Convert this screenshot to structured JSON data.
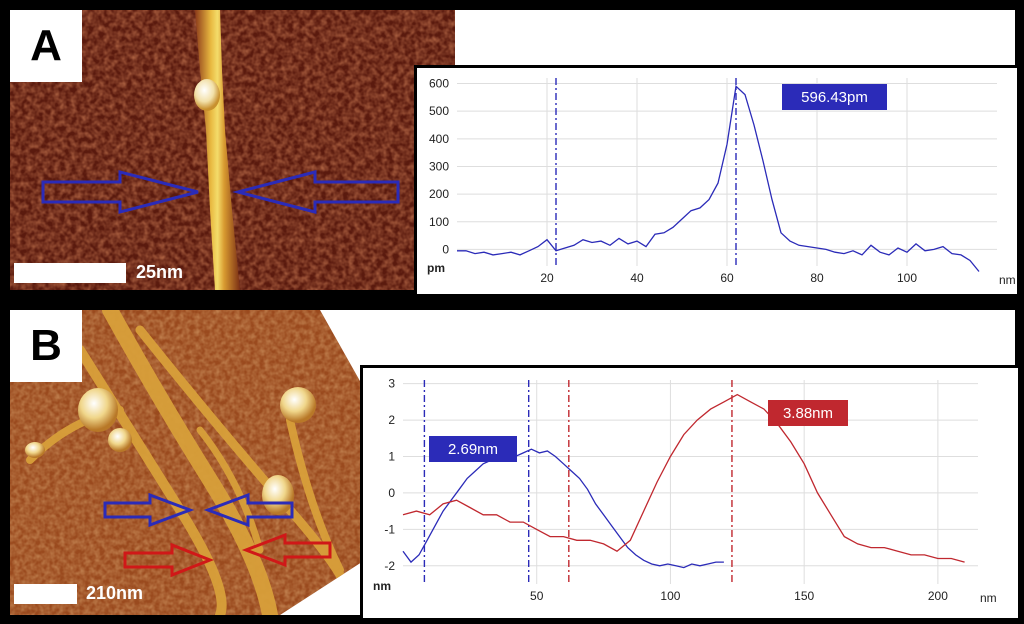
{
  "panels": {
    "A": {
      "label": "A",
      "scale_bar": "25nm"
    },
    "B": {
      "label": "B",
      "scale_bar": "210nm"
    }
  },
  "colors": {
    "blue": "#2b2bb8",
    "red": "#c0282f",
    "afm_dark": "#5a1a0e",
    "afm_mid": "#8b3a1a",
    "afm_bright": "#e8b840"
  },
  "chart_data": [
    {
      "type": "line",
      "panel": "A",
      "xlabel": "nm",
      "ylabel": "pm",
      "xlim": [
        0,
        120
      ],
      "ylim": [
        -60,
        620
      ],
      "xticks": [
        20,
        40,
        60,
        80,
        100
      ],
      "yticks": [
        0,
        100,
        200,
        300,
        400,
        500,
        600
      ],
      "markers": [
        22,
        62
      ],
      "annotation": "596.43pm",
      "series": [
        {
          "color": "#2b2bb8",
          "x": [
            0,
            2,
            4,
            6,
            8,
            10,
            12,
            14,
            16,
            18,
            20,
            22,
            24,
            26,
            28,
            30,
            32,
            34,
            36,
            38,
            40,
            42,
            44,
            46,
            48,
            50,
            52,
            54,
            56,
            58,
            60,
            62,
            64,
            66,
            68,
            70,
            72,
            74,
            76,
            78,
            80,
            82,
            84,
            86,
            88,
            90,
            92,
            94,
            96,
            98,
            100,
            102,
            104,
            106,
            108,
            110,
            112,
            114,
            116
          ],
          "y": [
            -5,
            -5,
            -15,
            -10,
            -20,
            -15,
            -10,
            -20,
            -5,
            10,
            35,
            -5,
            5,
            15,
            35,
            25,
            30,
            15,
            40,
            20,
            30,
            10,
            55,
            60,
            80,
            110,
            140,
            150,
            180,
            240,
            380,
            590,
            560,
            450,
            320,
            180,
            60,
            30,
            15,
            10,
            5,
            0,
            -10,
            -15,
            -5,
            -20,
            15,
            -10,
            -20,
            5,
            -10,
            20,
            -5,
            0,
            10,
            -15,
            -20,
            -40,
            -80
          ]
        }
      ]
    },
    {
      "type": "line",
      "panel": "B",
      "xlabel": "nm",
      "ylabel": "nm",
      "xlim": [
        0,
        215
      ],
      "ylim": [
        -2.5,
        3.1
      ],
      "xticks": [
        50,
        100,
        150,
        200
      ],
      "yticks": [
        -2,
        -1,
        0,
        1,
        2,
        3
      ],
      "markers_blue": [
        8,
        47
      ],
      "markers_red": [
        62,
        123
      ],
      "annotations": [
        "2.69nm",
        "3.88nm"
      ],
      "series": [
        {
          "color": "#2b2bb8",
          "x": [
            0,
            3,
            6,
            9,
            12,
            15,
            18,
            21,
            24,
            27,
            30,
            33,
            36,
            39,
            42,
            45,
            48,
            51,
            54,
            57,
            60,
            63,
            66,
            69,
            72,
            75,
            78,
            81,
            84,
            87,
            90,
            93,
            96,
            99,
            102,
            105,
            108,
            111,
            114,
            117,
            120
          ],
          "y": [
            -1.6,
            -1.9,
            -1.7,
            -1.3,
            -0.9,
            -0.5,
            -0.2,
            0.1,
            0.4,
            0.6,
            0.8,
            0.9,
            1.0,
            1.05,
            1.0,
            1.1,
            1.2,
            1.1,
            1.15,
            1.0,
            0.8,
            0.6,
            0.4,
            0.1,
            -0.3,
            -0.6,
            -0.9,
            -1.2,
            -1.5,
            -1.7,
            -1.85,
            -1.95,
            -2.0,
            -1.95,
            -2.0,
            -2.05,
            -1.95,
            -2.0,
            -1.95,
            -1.9,
            -1.9
          ]
        },
        {
          "color": "#c0282f",
          "x": [
            0,
            5,
            10,
            15,
            20,
            25,
            30,
            35,
            40,
            45,
            50,
            55,
            60,
            65,
            70,
            75,
            80,
            85,
            90,
            95,
            100,
            105,
            110,
            115,
            120,
            125,
            130,
            135,
            140,
            145,
            150,
            155,
            160,
            165,
            170,
            175,
            180,
            185,
            190,
            195,
            200,
            205,
            210
          ],
          "y": [
            -0.6,
            -0.5,
            -0.6,
            -0.3,
            -0.2,
            -0.4,
            -0.6,
            -0.6,
            -0.8,
            -0.8,
            -1.0,
            -1.2,
            -1.2,
            -1.3,
            -1.3,
            -1.4,
            -1.6,
            -1.3,
            -0.5,
            0.3,
            1.0,
            1.6,
            2.0,
            2.3,
            2.5,
            2.7,
            2.5,
            2.3,
            1.9,
            1.4,
            0.8,
            0.0,
            -0.6,
            -1.2,
            -1.4,
            -1.5,
            -1.5,
            -1.6,
            -1.7,
            -1.7,
            -1.8,
            -1.8,
            -1.9
          ]
        }
      ]
    }
  ]
}
